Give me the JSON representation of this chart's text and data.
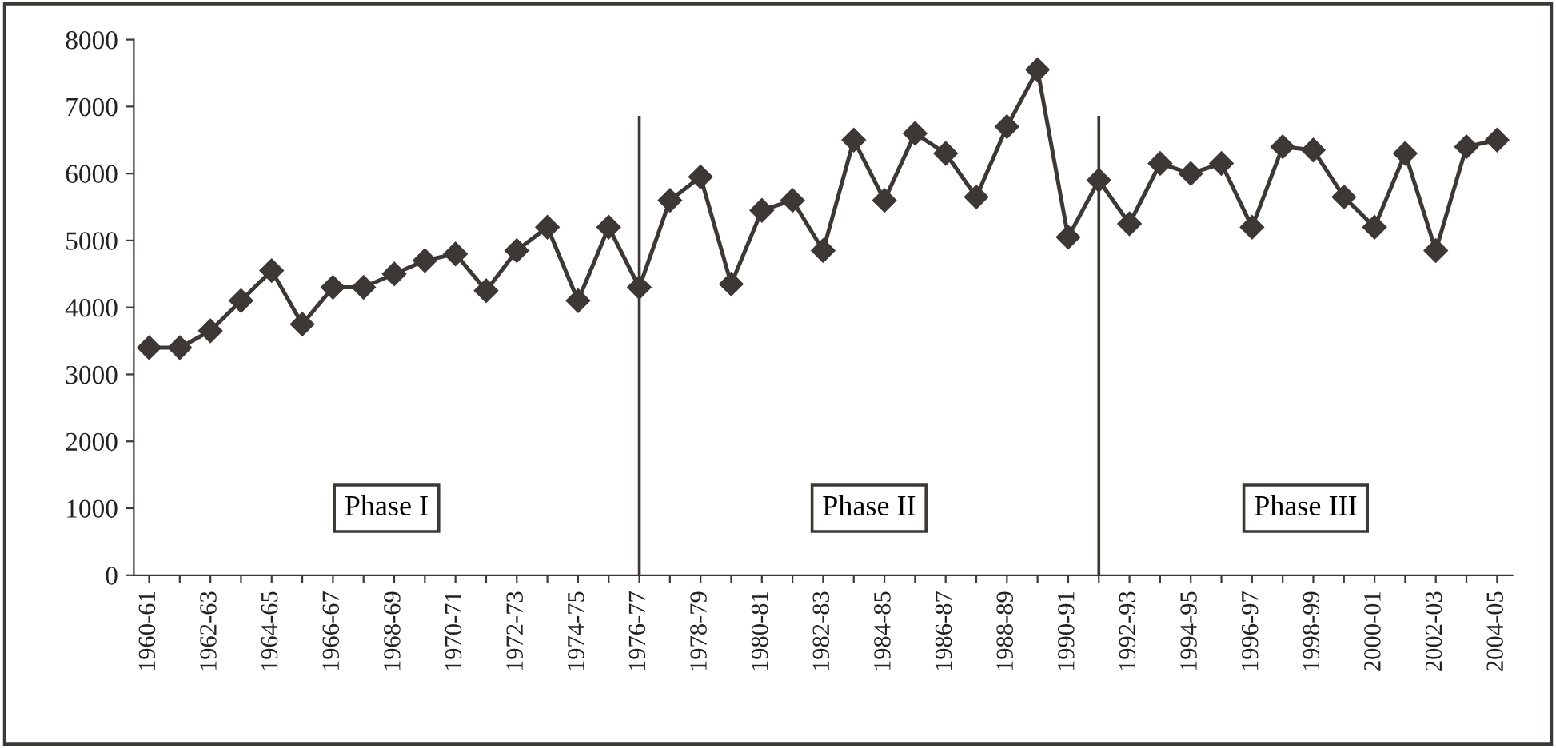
{
  "chart_data": {
    "type": "line",
    "categories": [
      "1960-61",
      null,
      "1962-63",
      null,
      "1964-65",
      null,
      "1966-67",
      null,
      "1968-69",
      null,
      "1970-71",
      null,
      "1972-73",
      null,
      "1974-75",
      null,
      "1976-77",
      null,
      "1978-79",
      null,
      "1980-81",
      null,
      "1982-83",
      null,
      "1984-85",
      null,
      "1986-87",
      null,
      "1988-89",
      null,
      "1990-91",
      null,
      "1992-93",
      null,
      "1994-95",
      null,
      "1996-97",
      null,
      "1998-99",
      null,
      "2000-01",
      null,
      "2002-03",
      null,
      "2004-05"
    ],
    "series": [
      {
        "color": "#3d3835",
        "values": [
          3400,
          3400,
          3650,
          4100,
          4550,
          3750,
          4300,
          4300,
          4500,
          4700,
          4800,
          4250,
          4850,
          5200,
          4100,
          5200,
          4300,
          5600,
          5950,
          4350,
          5450,
          5600,
          4850,
          6500,
          5600,
          6600,
          6300,
          5650,
          6700,
          7550,
          5050,
          5900,
          5250,
          6150,
          6000,
          6150,
          5200,
          6400,
          6350,
          5650,
          5200,
          6300,
          4850,
          6400,
          6500
        ]
      }
    ],
    "ylim": [
      0,
      8000
    ],
    "yticks": [
      0,
      1000,
      2000,
      3000,
      4000,
      5000,
      6000,
      7000,
      8000
    ],
    "marker": "diamond",
    "line_style": "solid",
    "legend": false,
    "ref_lines": [
      {
        "axis": "x",
        "value": "1976-77",
        "color": "#3d3835"
      },
      {
        "axis": "x",
        "value": "1991-92",
        "color": "#3d3835"
      }
    ],
    "annotations": [
      "Phase I",
      "Phase II",
      "Phase III"
    ]
  }
}
